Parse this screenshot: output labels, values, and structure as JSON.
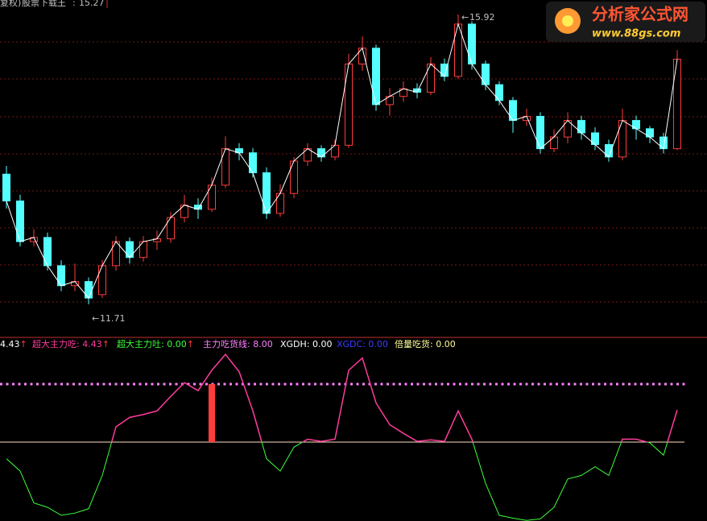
{
  "header": {
    "prefix": "复权)",
    "name": "股票下载王",
    "value": 15.27
  },
  "watermark": {
    "title": "分析家公式网",
    "url": "www.88gs.com"
  },
  "chart_data": [
    {
      "type": "candlestick",
      "up_color": "#ff3c3c",
      "down_color": "#54ffff",
      "line_color": "#ffffff",
      "ylim": [
        11.24,
        16.13
      ],
      "open": [
        13.6,
        13.21,
        12.62,
        12.68,
        12.27,
        11.98,
        12.04,
        11.85,
        12.27,
        12.62,
        12.39,
        12.62,
        12.66,
        12.97,
        13.15,
        13.09,
        13.44,
        13.97,
        13.91,
        13.62,
        13.03,
        13.32,
        13.79,
        13.97,
        13.85,
        14.02,
        15.2,
        15.43,
        14.61,
        14.73,
        14.84,
        14.79,
        15.2,
        15.02,
        15.78,
        15.2,
        14.9,
        14.67,
        14.38,
        14.44,
        13.97,
        14.14,
        14.38,
        14.2,
        14.03,
        13.85,
        14.38,
        14.26,
        14.14,
        13.97
      ],
      "high": [
        13.72,
        13.3,
        12.8,
        12.75,
        12.35,
        12.3,
        12.1,
        12.35,
        12.7,
        12.68,
        12.7,
        12.78,
        13.05,
        13.3,
        13.25,
        13.55,
        14.15,
        14.05,
        13.98,
        13.7,
        13.45,
        13.85,
        14.05,
        14.02,
        14.1,
        15.35,
        15.6,
        15.48,
        14.85,
        14.95,
        14.92,
        15.3,
        15.28,
        15.92,
        15.82,
        15.25,
        14.95,
        14.72,
        14.55,
        14.5,
        14.25,
        14.5,
        14.45,
        14.28,
        14.1,
        14.55,
        14.45,
        14.3,
        14.2,
        15.4
      ],
      "low": [
        13.1,
        12.55,
        12.55,
        12.2,
        11.9,
        11.9,
        11.71,
        11.8,
        12.2,
        12.3,
        12.33,
        12.5,
        12.6,
        12.9,
        12.95,
        13.05,
        13.4,
        13.8,
        13.55,
        12.95,
        12.98,
        13.25,
        13.72,
        13.78,
        13.8,
        13.98,
        15.1,
        14.52,
        14.45,
        14.65,
        14.7,
        14.75,
        14.95,
        14.98,
        15.12,
        14.82,
        14.6,
        14.2,
        14.3,
        13.9,
        13.92,
        14.05,
        14.1,
        13.95,
        13.78,
        13.8,
        14.1,
        14.05,
        13.9,
        13.95
      ],
      "close": [
        13.21,
        12.62,
        12.68,
        12.27,
        11.98,
        12.04,
        11.8,
        12.27,
        12.62,
        12.39,
        12.62,
        12.66,
        12.97,
        13.15,
        13.09,
        13.44,
        13.97,
        13.91,
        13.62,
        13.03,
        13.32,
        13.79,
        13.97,
        13.85,
        14.02,
        15.2,
        15.43,
        14.61,
        14.73,
        14.84,
        14.79,
        15.2,
        15.02,
        15.78,
        15.2,
        14.9,
        14.67,
        14.38,
        14.44,
        13.97,
        14.14,
        14.38,
        14.2,
        14.03,
        13.85,
        14.38,
        14.26,
        14.14,
        13.97,
        15.27
      ],
      "annotations": [
        {
          "index": 33,
          "text": "15.92"
        },
        {
          "index": 6,
          "text": "11.71"
        }
      ]
    },
    {
      "type": "indicator",
      "ylim": [
        -10.89,
        12.44
      ],
      "legend": [
        {
          "value": 4.43,
          "label": "4.43",
          "arrow": "↑",
          "color": "#ffffff"
        },
        {
          "name": "超大主力吃",
          "value": 4.43,
          "label": "4.43",
          "arrow": "↑",
          "color": "#ff3c9c"
        },
        {
          "name": "超大主力吐",
          "value": 0,
          "label": "0.00",
          "arrow": "↑",
          "color": "#3cff3c"
        },
        {
          "name": "主力吃货线",
          "value": 8,
          "label": "8.00",
          "color": "#ff80ff"
        },
        {
          "name": "XGDH",
          "value": 0,
          "label": "0.00",
          "color": "#ffffff"
        },
        {
          "name": "XGDC",
          "value": 0,
          "label": "0.00",
          "color": "#3c3cff"
        },
        {
          "name": "倍量吃货",
          "value": 0,
          "label": "0.00",
          "color": "#ffff99"
        }
      ],
      "values": [
        -2.3,
        -4.0,
        -8.4,
        -9.0,
        -10.1,
        -9.8,
        -9.2,
        -4.6,
        2.1,
        3.4,
        3.8,
        4.3,
        6.3,
        8.2,
        7.1,
        9.9,
        12.1,
        9.7,
        4.3,
        -2.3,
        -4.0,
        -0.7,
        0.4,
        0.1,
        0.4,
        9.9,
        11.6,
        5.4,
        2.4,
        1.2,
        0.1,
        0.3,
        0.1,
        4.3,
        0.4,
        -5.7,
        -10.1,
        -10.5,
        -10.8,
        -10.6,
        -9.0,
        -5.1,
        -4.6,
        -3.4,
        -4.6,
        0.4,
        0.4,
        -0.1,
        -1.8,
        4.43
      ],
      "above_color": "#ff3c9c",
      "below_color": "#3cff3c",
      "level": 8,
      "level_color": "#ff80ff",
      "bars": [
        {
          "index": 15,
          "value": 8
        }
      ],
      "bar_color": "#ff3c3c"
    }
  ]
}
